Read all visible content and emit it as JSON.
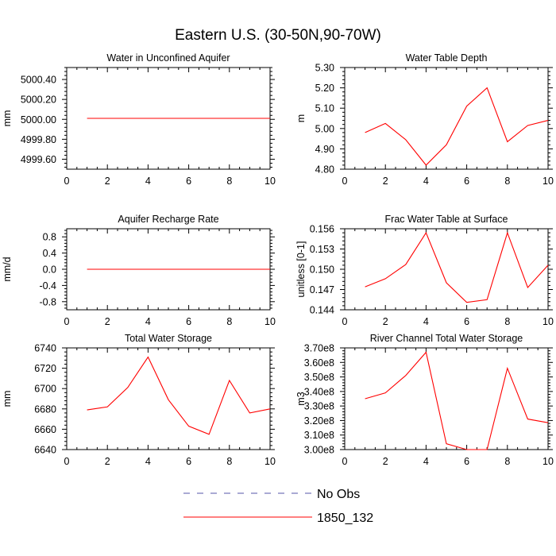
{
  "figure": {
    "title": "Eastern U.S. (30-50N,90-70W)"
  },
  "colors": {
    "model": "#ff0000",
    "obs": "#5555aa",
    "axis": "#000000"
  },
  "legend": {
    "items": [
      {
        "label": "No Obs",
        "style": "dashed",
        "color": "#5555aa"
      },
      {
        "label": "1850_132",
        "style": "solid",
        "color": "#ff0000"
      }
    ]
  },
  "chart_data": [
    {
      "type": "line",
      "title": "Water in Unconfined Aquifer",
      "ylabel": "mm",
      "xlim": [
        0,
        10
      ],
      "ylim": [
        4999.5,
        5000.52
      ],
      "xticks": [
        0,
        2,
        4,
        6,
        8,
        10
      ],
      "xtick_labels": [
        "0",
        "2",
        "4",
        "6",
        "8",
        "10"
      ],
      "yticks": [
        4999.6,
        4999.8,
        5000.0,
        5000.2,
        5000.4
      ],
      "ytick_labels": [
        "4999.60",
        "4999.80",
        "5000.00",
        "5000.20",
        "5000.40"
      ],
      "series": [
        {
          "name": "1850_132",
          "x": [
            1,
            2,
            3,
            4,
            5,
            6,
            7,
            8,
            9,
            10
          ],
          "y": [
            5000.01,
            5000.01,
            5000.01,
            5000.01,
            5000.01,
            5000.01,
            5000.01,
            5000.01,
            5000.01,
            5000.01
          ]
        }
      ]
    },
    {
      "type": "line",
      "title": "Water Table Depth",
      "ylabel": "m",
      "xlim": [
        0,
        10
      ],
      "ylim": [
        4.8,
        5.3
      ],
      "xticks": [
        0,
        2,
        4,
        6,
        8,
        10
      ],
      "xtick_labels": [
        "0",
        "2",
        "4",
        "6",
        "8",
        "10"
      ],
      "yticks": [
        4.8,
        4.9,
        5.0,
        5.1,
        5.2,
        5.3
      ],
      "ytick_labels": [
        "4.80",
        "4.90",
        "5.00",
        "5.10",
        "5.20",
        "5.30"
      ],
      "series": [
        {
          "name": "1850_132",
          "x": [
            1,
            2,
            3,
            4,
            5,
            6,
            7,
            8,
            9,
            10
          ],
          "y": [
            4.98,
            5.025,
            4.945,
            4.82,
            4.92,
            5.11,
            5.2,
            4.935,
            5.015,
            5.04
          ]
        }
      ]
    },
    {
      "type": "line",
      "title": "Aquifer Recharge Rate",
      "ylabel": "mm/d",
      "xlim": [
        0,
        10
      ],
      "ylim": [
        -1.0,
        1.0
      ],
      "xticks": [
        0,
        2,
        4,
        6,
        8,
        10
      ],
      "xtick_labels": [
        "0",
        "2",
        "4",
        "6",
        "8",
        "10"
      ],
      "yticks": [
        -0.8,
        -0.4,
        0.0,
        0.4,
        0.8
      ],
      "ytick_labels": [
        "-0.8",
        "-0.4",
        "0.0",
        "0.4",
        "0.8"
      ],
      "series": [
        {
          "name": "1850_132",
          "x": [
            1,
            2,
            3,
            4,
            5,
            6,
            7,
            8,
            9,
            10
          ],
          "y": [
            0,
            0,
            0,
            0,
            0,
            0,
            0,
            0,
            0,
            0
          ]
        }
      ]
    },
    {
      "type": "line",
      "title": "Frac Water Table at Surface",
      "ylabel": "unitless [0-1]",
      "xlim": [
        0,
        10
      ],
      "ylim": [
        0.144,
        0.156
      ],
      "xticks": [
        0,
        2,
        4,
        6,
        8,
        10
      ],
      "xtick_labels": [
        "0",
        "2",
        "4",
        "6",
        "8",
        "10"
      ],
      "yticks": [
        0.144,
        0.147,
        0.15,
        0.153,
        0.156
      ],
      "ytick_labels": [
        "0.144",
        "0.147",
        "0.150",
        "0.153",
        "0.156"
      ],
      "series": [
        {
          "name": "1850_132",
          "x": [
            1,
            2,
            3,
            4,
            5,
            6,
            7,
            8,
            9,
            10
          ],
          "y": [
            0.1474,
            0.1486,
            0.1507,
            0.1554,
            0.148,
            0.1451,
            0.1455,
            0.1554,
            0.1473,
            0.1506
          ]
        }
      ]
    },
    {
      "type": "line",
      "title": "Total Water Storage",
      "ylabel": "mm",
      "xlim": [
        0,
        10
      ],
      "ylim": [
        6640,
        6740
      ],
      "xticks": [
        0,
        2,
        4,
        6,
        8,
        10
      ],
      "xtick_labels": [
        "0",
        "2",
        "4",
        "6",
        "8",
        "10"
      ],
      "yticks": [
        6640,
        6660,
        6680,
        6700,
        6720,
        6740
      ],
      "ytick_labels": [
        "6640",
        "6660",
        "6680",
        "6700",
        "6720",
        "6740"
      ],
      "series": [
        {
          "name": "1850_132",
          "x": [
            1,
            2,
            3,
            4,
            5,
            6,
            7,
            8,
            9,
            10
          ],
          "y": [
            6679,
            6682,
            6701,
            6731,
            6689,
            6663,
            6655,
            6708,
            6676,
            6680
          ]
        }
      ]
    },
    {
      "type": "line",
      "title": "River Channel Total Water Storage",
      "ylabel": "m3",
      "xlim": [
        0,
        10
      ],
      "ylim": [
        300000000,
        370000000
      ],
      "xticks": [
        0,
        2,
        4,
        6,
        8,
        10
      ],
      "xtick_labels": [
        "0",
        "2",
        "4",
        "6",
        "8",
        "10"
      ],
      "yticks": [
        300000000,
        310000000,
        320000000,
        330000000,
        340000000,
        350000000,
        360000000,
        370000000
      ],
      "ytick_labels": [
        "3.00e8",
        "3.10e8",
        "3.20e8",
        "3.30e8",
        "3.40e8",
        "3.50e8",
        "3.60e8",
        "3.70e8"
      ],
      "series": [
        {
          "name": "1850_132",
          "x": [
            1,
            2,
            3,
            4,
            5,
            6,
            7,
            8,
            9,
            10
          ],
          "y": [
            335000000,
            339000000,
            351000000,
            367000000,
            304000000,
            300000000,
            300000000,
            356000000,
            321000000,
            318500000
          ]
        }
      ]
    }
  ]
}
